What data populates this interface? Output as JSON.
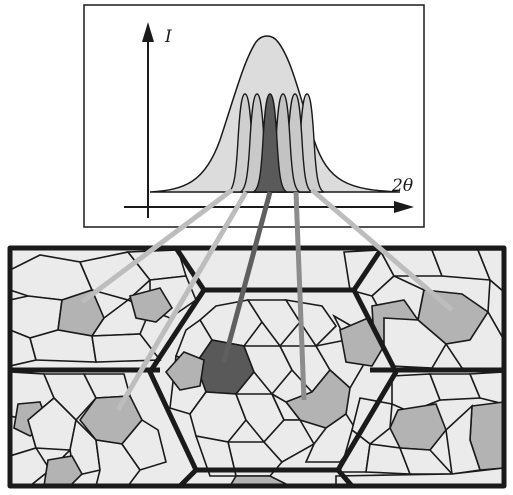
{
  "plot": {
    "y_axis_label": "I",
    "x_axis_label": "2θ"
  },
  "colors": {
    "ink": "#1a1a1a",
    "envelope_fill": "#dcdcdc",
    "peak_fill": "#c6c6c6",
    "peak_dark": "#5a5a5a",
    "grain_light": "#e9e9e9",
    "grain_mid": "#b3b3b3",
    "grain_dark": "#595959",
    "connector_light": "#bdbdbd",
    "connector_mid": "#8c8c8c",
    "connector_dark": "#5f5f5f"
  }
}
